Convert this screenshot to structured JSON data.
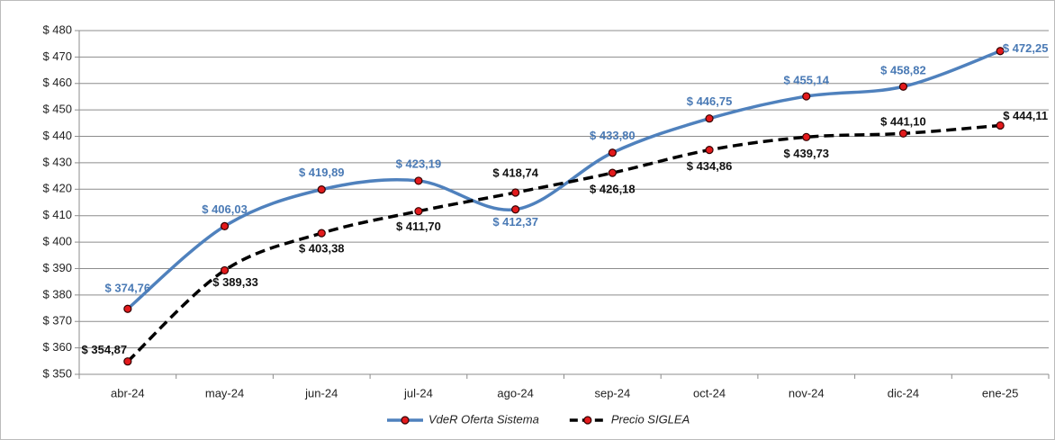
{
  "chart_data": {
    "type": "line",
    "categories": [
      "abr-24",
      "may-24",
      "jun-24",
      "jul-24",
      "ago-24",
      "sep-24",
      "oct-24",
      "nov-24",
      "dic-24",
      "ene-25"
    ],
    "series": [
      {
        "name": "VdeR Oferta Sistema",
        "color": "#4f81bd",
        "line_style": "solid",
        "values": [
          374.76,
          406.03,
          419.89,
          423.19,
          412.37,
          433.8,
          446.75,
          455.14,
          458.82,
          472.25
        ],
        "value_labels": [
          "$ 374,76",
          "$ 406,03",
          "$ 419,89",
          "$ 423,19",
          "$ 412,37",
          "$ 433,80",
          "$ 446,75",
          "$ 455,14",
          "$ 458,82",
          "$ 472,25"
        ]
      },
      {
        "name": "Precio SIGLEA",
        "color": "#000000",
        "line_style": "dashed",
        "values": [
          354.87,
          389.33,
          403.38,
          411.7,
          418.74,
          426.18,
          434.86,
          439.73,
          441.1,
          444.11
        ],
        "value_labels": [
          "$ 354,87",
          "$ 389,33",
          "$ 403,38",
          "$ 411,70",
          "$ 418,74",
          "$ 426,18",
          "$ 434,86",
          "$ 439,73",
          "$ 441,10",
          "$ 444,11"
        ]
      }
    ],
    "marker_color": "#e31a1c",
    "ylim": [
      350,
      480
    ],
    "yticks": [
      {
        "value": 350,
        "label": "$ 350"
      },
      {
        "value": 360,
        "label": "$ 360"
      },
      {
        "value": 370,
        "label": "$ 370"
      },
      {
        "value": 380,
        "label": "$ 380"
      },
      {
        "value": 390,
        "label": "$ 390"
      },
      {
        "value": 400,
        "label": "$ 400"
      },
      {
        "value": 410,
        "label": "$ 410"
      },
      {
        "value": 420,
        "label": "$ 420"
      },
      {
        "value": 430,
        "label": "$ 430"
      },
      {
        "value": 440,
        "label": "$ 440"
      },
      {
        "value": 450,
        "label": "$ 450"
      },
      {
        "value": 460,
        "label": "$ 460"
      },
      {
        "value": 470,
        "label": "$ 470"
      },
      {
        "value": 480,
        "label": "$ 480"
      }
    ],
    "grid": true,
    "legend": "bottom"
  }
}
